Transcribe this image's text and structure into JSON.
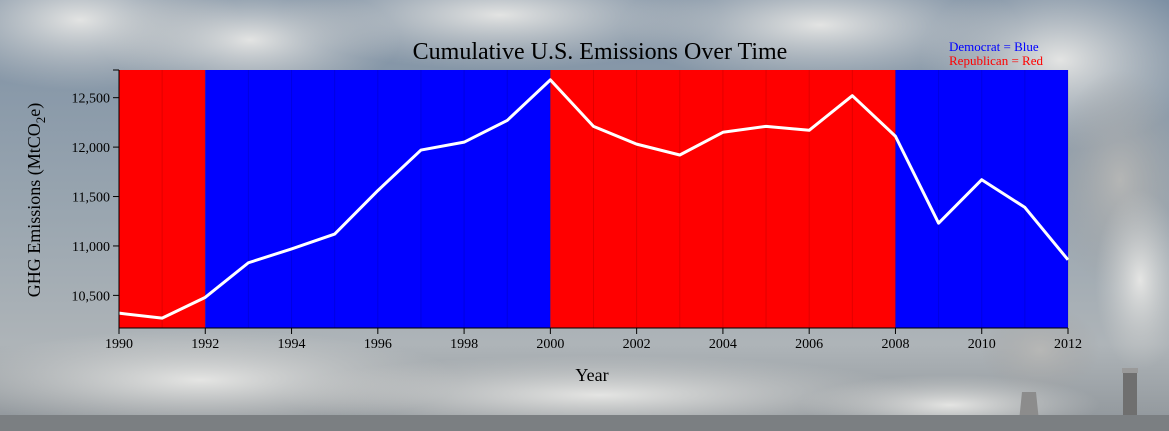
{
  "chart_data": {
    "type": "line",
    "title": "Cumulative U.S. Emissions Over Time",
    "xlabel": "Year",
    "ylabel_main": "GHG Emissions (MtCO",
    "ylabel_sub": "2",
    "ylabel_end": "e)",
    "xlim": [
      1990,
      2012
    ],
    "ylim": [
      10170,
      12780
    ],
    "x_ticks": [
      1990,
      1992,
      1994,
      1996,
      1998,
      2000,
      2002,
      2004,
      2006,
      2008,
      2010,
      2012
    ],
    "y_ticks": [
      10500,
      11000,
      11500,
      12000,
      12500
    ],
    "y_tick_labels": [
      "10,500",
      "11,000",
      "11,500",
      "12,000",
      "12,500"
    ],
    "x": [
      1990,
      1991,
      1992,
      1993,
      1994,
      1995,
      1996,
      1997,
      1998,
      1999,
      2000,
      2001,
      2002,
      2003,
      2004,
      2005,
      2006,
      2007,
      2008,
      2009,
      2010,
      2011,
      2012
    ],
    "values": [
      10320,
      10270,
      10480,
      10830,
      10970,
      11120,
      11560,
      11970,
      12050,
      12270,
      12680,
      12210,
      12030,
      11920,
      12150,
      12210,
      12170,
      12520,
      12110,
      11230,
      11670,
      11390,
      10860
    ],
    "line_color": "#ffffff",
    "party_periods": [
      {
        "party": "Republican",
        "start": 1990,
        "end": 1992,
        "color": "#ff0000"
      },
      {
        "party": "Democrat",
        "start": 1992,
        "end": 2000,
        "color": "#0000ff"
      },
      {
        "party": "Republican",
        "start": 2000,
        "end": 2008,
        "color": "#ff0000"
      },
      {
        "party": "Democrat",
        "start": 2008,
        "end": 2012,
        "color": "#0000ff"
      }
    ],
    "legend": [
      {
        "text": "Democrat = Blue",
        "color": "#0000ff"
      },
      {
        "text": "Republican = Red",
        "color": "#ff0000"
      }
    ],
    "legend_position": "top-right"
  }
}
